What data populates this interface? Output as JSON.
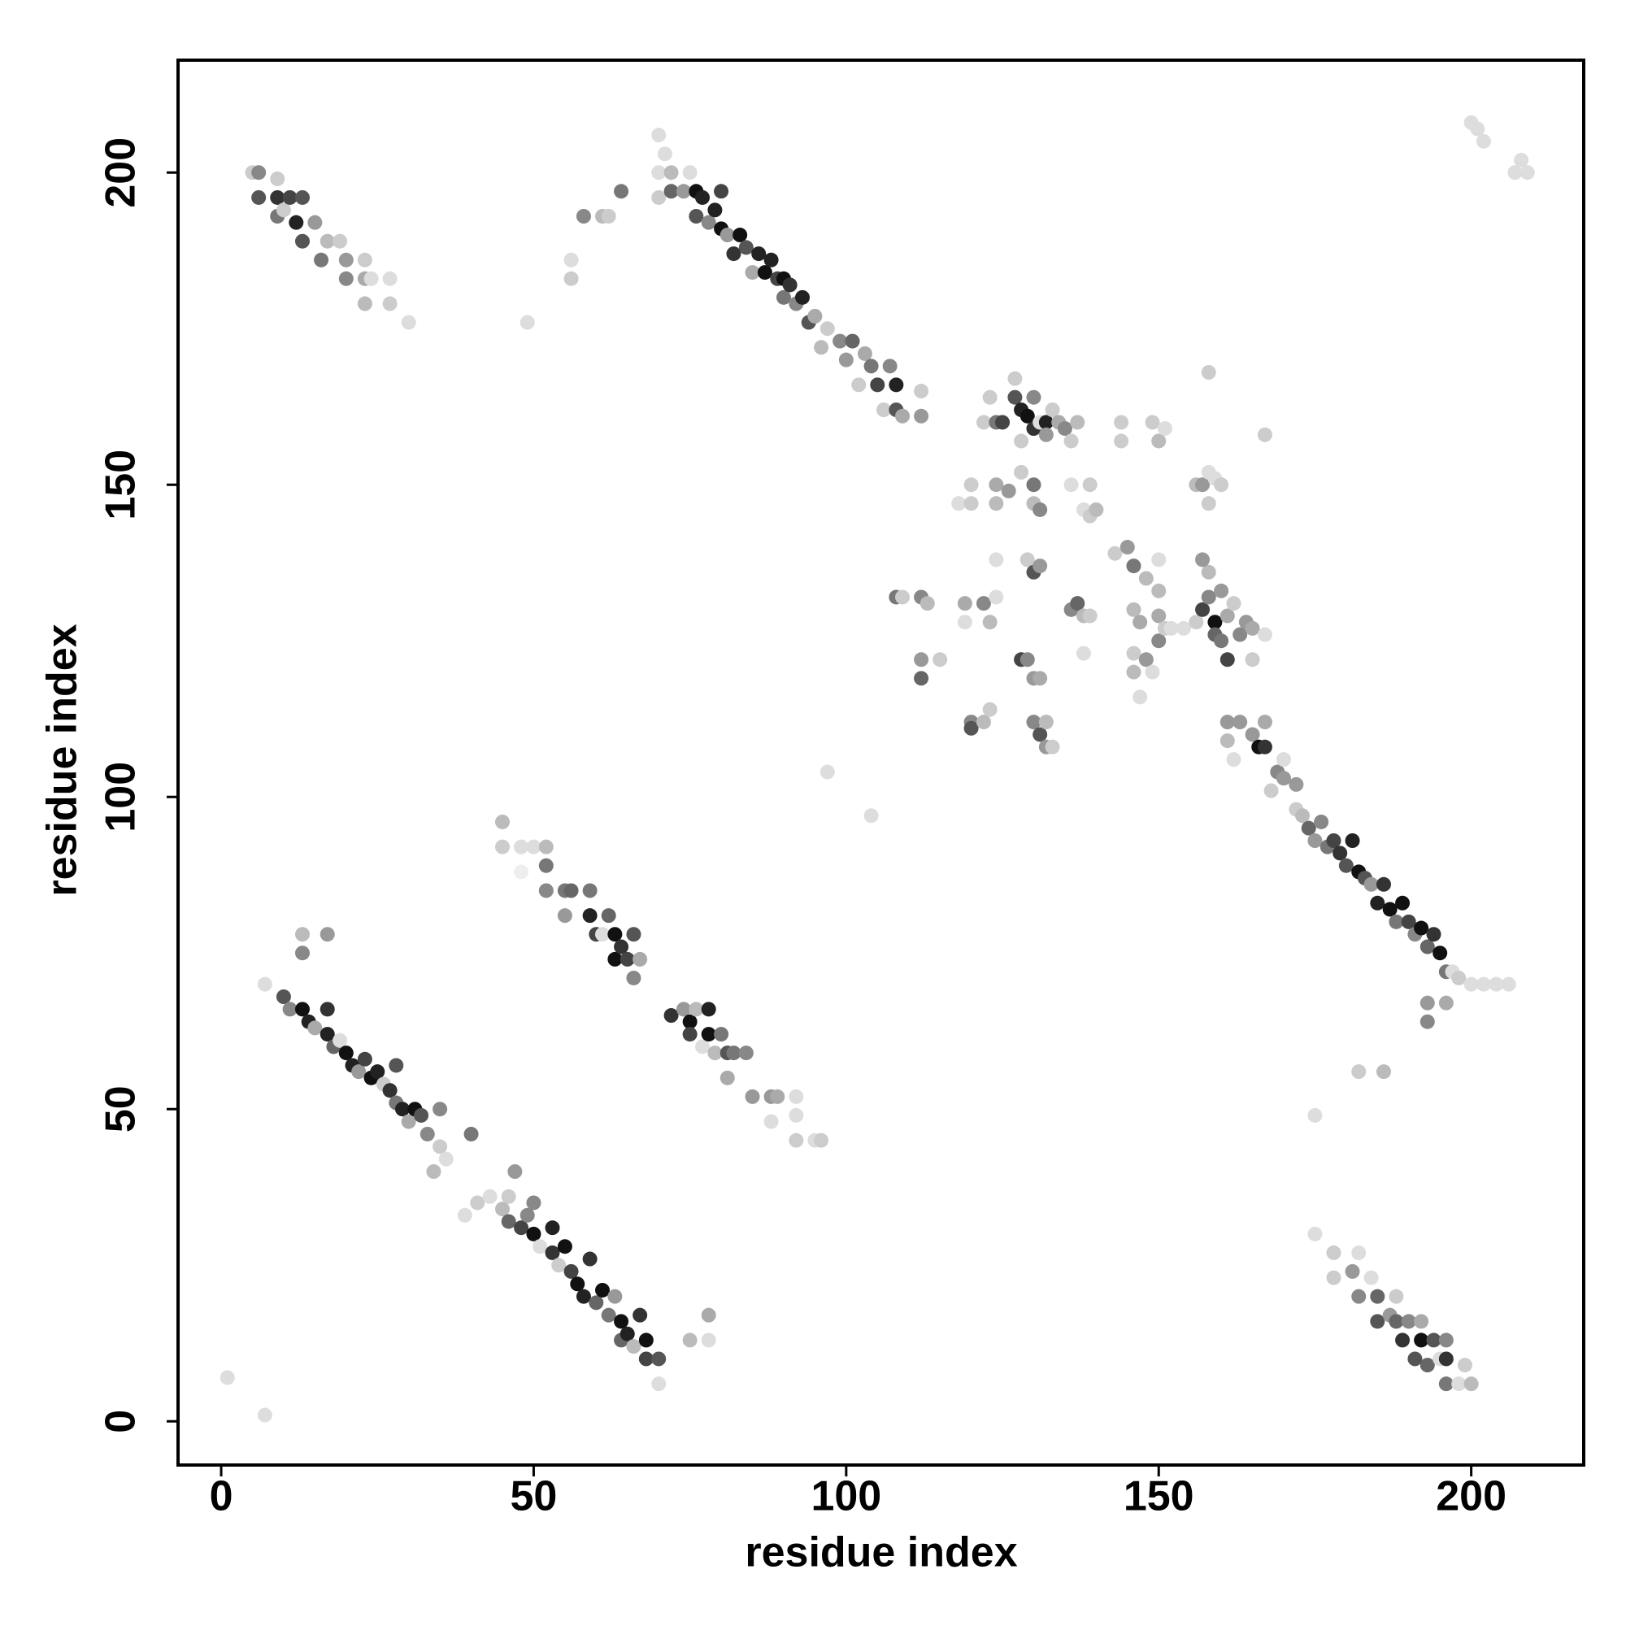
{
  "chart_data": {
    "type": "scatter",
    "xlabel": "residue index",
    "ylabel": "residue index",
    "xlim": [
      -6.9,
      218
    ],
    "ylim": [
      -7,
      218
    ],
    "xticks": [
      0,
      50,
      100,
      150,
      200
    ],
    "yticks": [
      0,
      50,
      100,
      150,
      200
    ],
    "x": [
      10,
      11,
      13,
      14,
      15,
      17,
      17,
      18,
      19,
      20,
      21,
      22,
      23,
      24,
      25,
      26,
      27,
      28,
      28,
      29,
      30,
      31,
      32,
      33,
      35,
      35,
      36,
      34,
      40,
      13,
      13,
      17,
      7,
      39,
      41,
      43,
      45,
      46,
      46,
      47,
      48,
      49,
      50,
      50,
      51,
      53,
      53,
      54,
      55,
      56,
      57,
      58,
      59,
      60,
      61,
      62,
      63,
      64,
      64,
      65,
      66,
      67,
      68,
      68,
      70,
      70,
      78,
      78,
      75,
      45,
      45,
      48,
      50,
      48,
      52,
      52,
      52,
      55,
      56,
      55,
      59,
      59,
      60,
      61,
      62,
      63,
      63,
      64,
      65,
      66,
      66,
      67,
      72,
      74,
      75,
      75,
      76,
      77,
      78,
      78,
      79,
      80,
      81,
      81,
      82,
      84,
      85,
      88,
      89,
      88,
      92,
      92,
      92,
      95,
      96,
      5,
      6,
      6,
      9,
      9,
      9,
      10,
      11,
      12,
      13,
      13,
      15,
      16,
      17,
      19,
      20,
      20,
      23,
      23,
      23,
      24,
      27,
      27,
      30,
      49,
      56,
      56,
      70,
      70,
      70,
      71,
      72,
      72,
      74,
      75,
      76,
      76,
      77,
      78,
      79,
      80,
      80,
      81,
      82,
      83,
      84,
      85,
      86,
      87,
      88,
      89,
      90,
      90,
      91,
      92,
      93,
      94,
      95,
      96,
      97,
      99,
      100,
      101,
      102,
      103,
      104,
      105,
      106,
      107,
      108,
      108,
      109,
      112,
      112,
      58,
      61,
      62,
      64,
      97,
      104,
      161,
      161,
      162,
      163,
      165,
      166,
      167,
      167,
      168,
      169,
      170,
      170,
      172,
      172,
      173,
      174,
      175,
      176,
      177,
      178,
      179,
      180,
      181,
      182,
      183,
      184,
      185,
      186,
      187,
      188,
      189,
      190,
      191,
      192,
      193,
      194,
      195,
      196,
      197,
      198,
      200,
      202,
      204,
      206,
      193,
      193,
      196,
      182,
      186,
      175,
      175,
      178,
      178,
      181,
      182,
      182,
      184,
      185,
      185,
      187,
      188,
      188,
      189,
      190,
      191,
      192,
      192,
      193,
      194,
      195,
      196,
      196,
      196,
      198,
      199,
      200,
      1,
      7,
      200,
      201,
      202,
      207,
      208,
      209,
      118,
      120,
      120,
      122,
      123,
      124,
      124,
      124,
      125,
      126,
      127,
      127,
      128,
      128,
      128,
      129,
      130,
      130,
      130,
      131,
      132,
      132,
      133,
      134,
      135,
      136,
      137,
      130,
      131,
      136,
      139,
      138,
      139,
      140,
      144,
      144,
      149,
      150,
      151,
      156,
      157,
      158,
      158,
      159,
      160,
      158,
      167,
      108,
      109,
      112,
      113,
      112,
      112,
      115,
      119,
      119,
      120,
      120,
      122,
      123,
      122,
      123,
      124,
      124,
      128,
      129,
      130,
      131,
      130,
      131,
      132,
      132,
      133,
      129,
      130,
      131,
      136,
      137,
      138,
      138,
      139,
      143,
      145,
      146,
      148,
      146,
      147,
      146,
      146,
      147,
      148,
      149,
      150,
      150,
      151,
      152,
      154,
      156,
      157,
      158,
      158,
      159,
      159,
      160,
      160,
      161,
      161,
      162,
      163,
      164,
      165,
      165,
      167,
      150,
      150,
      157
    ],
    "values": [
      68,
      66,
      66,
      64,
      63,
      66,
      62,
      60,
      61,
      59,
      57,
      56,
      58,
      55,
      56,
      54,
      53,
      57,
      51,
      50,
      48,
      50,
      49,
      46,
      50,
      44,
      42,
      40,
      46,
      75,
      78,
      78,
      70,
      33,
      35,
      36,
      34,
      36,
      32,
      40,
      31,
      33,
      30,
      35,
      28,
      31,
      27,
      25,
      28,
      24,
      22,
      20,
      26,
      19,
      21,
      17,
      20,
      16,
      13,
      14,
      12,
      17,
      13,
      10,
      10,
      6,
      17,
      13,
      13,
      96,
      92,
      92,
      92,
      88,
      92,
      89,
      85,
      85,
      85,
      81,
      85,
      81,
      78,
      78,
      81,
      78,
      74,
      76,
      74,
      78,
      71,
      74,
      65,
      66,
      64,
      62,
      66,
      60,
      66,
      62,
      59,
      62,
      59,
      55,
      59,
      59,
      52,
      52,
      52,
      48,
      52,
      49,
      45,
      45,
      45,
      200,
      200,
      196,
      199,
      193,
      196,
      194,
      196,
      192,
      196,
      189,
      192,
      186,
      189,
      189,
      186,
      183,
      186,
      183,
      179,
      183,
      183,
      179,
      176,
      176,
      186,
      183,
      206,
      200,
      196,
      203,
      197,
      200,
      197,
      200,
      193,
      197,
      196,
      192,
      194,
      191,
      197,
      190,
      187,
      190,
      188,
      184,
      187,
      184,
      186,
      183,
      180,
      183,
      182,
      179,
      180,
      176,
      177,
      172,
      175,
      173,
      170,
      173,
      166,
      171,
      169,
      166,
      162,
      169,
      166,
      162,
      161,
      165,
      161,
      193,
      193,
      193,
      197,
      104,
      97,
      112,
      109,
      106,
      112,
      110,
      108,
      108,
      112,
      101,
      104,
      103,
      106,
      102,
      98,
      97,
      95,
      93,
      96,
      92,
      93,
      91,
      89,
      93,
      88,
      87,
      86,
      83,
      86,
      82,
      80,
      83,
      80,
      78,
      79,
      76,
      78,
      75,
      72,
      72,
      71,
      70,
      70,
      70,
      70,
      67,
      64,
      67,
      56,
      56,
      49,
      30,
      27,
      23,
      24,
      27,
      20,
      23,
      20,
      16,
      17,
      20,
      16,
      13,
      16,
      10,
      16,
      13,
      9,
      13,
      10,
      13,
      10,
      6,
      6,
      9,
      6,
      7,
      1,
      208,
      207,
      205,
      200,
      202,
      200,
      147,
      150,
      147,
      160,
      164,
      160,
      150,
      147,
      160,
      149,
      167,
      164,
      162,
      157,
      152,
      161,
      159,
      164,
      150,
      160,
      160,
      158,
      162,
      160,
      159,
      157,
      160,
      147,
      146,
      150,
      150,
      146,
      145,
      146,
      160,
      157,
      160,
      157,
      159,
      150,
      150,
      152,
      147,
      151,
      150,
      168,
      158,
      132,
      132,
      132,
      131,
      122,
      119,
      122,
      128,
      131,
      112,
      111,
      112,
      114,
      131,
      128,
      132,
      138,
      122,
      122,
      119,
      119,
      112,
      110,
      112,
      108,
      108,
      138,
      136,
      137,
      130,
      131,
      129,
      123,
      129,
      139,
      140,
      137,
      135,
      130,
      128,
      123,
      120,
      116,
      122,
      120,
      125,
      129,
      127,
      127,
      127,
      128,
      130,
      132,
      136,
      128,
      126,
      133,
      125,
      122,
      129,
      131,
      126,
      128,
      127,
      122,
      126,
      133,
      138,
      138
    ],
    "colors": [
      "#555",
      "#888",
      "#111",
      "#222",
      "#aaa",
      "#333",
      "#222",
      "#666",
      "#ddd",
      "#111",
      "#222",
      "#999",
      "#444",
      "#111",
      "#222",
      "#ccc",
      "#333",
      "#555",
      "#777",
      "#222",
      "#aaa",
      "#111",
      "#555",
      "#888",
      "#888",
      "#ccc",
      "#ddd",
      "#bbb",
      "#777",
      "#888",
      "#bbb",
      "#999",
      "#ddd",
      "#ddd",
      "#ccc",
      "#ddd",
      "#bbb",
      "#ccc",
      "#666",
      "#999",
      "#444",
      "#888",
      "#111",
      "#888",
      "#ddd",
      "#222",
      "#333",
      "#ccc",
      "#111",
      "#444",
      "#111",
      "#222",
      "#333",
      "#666",
      "#111",
      "#777",
      "#999",
      "#111",
      "#666",
      "#222",
      "#bbb",
      "#333",
      "#111",
      "#444",
      "#555",
      "#ddd",
      "#aaa",
      "#ddd",
      "#bbb",
      "#bbb",
      "#ccc",
      "#ddd",
      "#ddd",
      "#eee",
      "#bbb",
      "#777",
      "#888",
      "#777",
      "#666",
      "#999",
      "#777",
      "#222",
      "#444",
      "#ddd",
      "#666",
      "#111",
      "#111",
      "#333",
      "#444",
      "#555",
      "#888",
      "#aaa",
      "#333",
      "#999",
      "#111",
      "#444",
      "#bbb",
      "#ddd",
      "#222",
      "#111",
      "#bbb",
      "#777",
      "#555",
      "#aaa",
      "#777",
      "#888",
      "#999",
      "#999",
      "#aaa",
      "#ddd",
      "#ddd",
      "#ddd",
      "#ccc",
      "#ddd",
      "#ccc",
      "#ccc",
      "#888",
      "#555",
      "#ccc",
      "#777",
      "#333",
      "#ccc",
      "#444",
      "#222",
      "#555",
      "#555",
      "#999",
      "#777",
      "#bbb",
      "#ccc",
      "#999",
      "#888",
      "#ccc",
      "#aaa",
      "#bbb",
      "#ddd",
      "#ddd",
      "#ccc",
      "#ddd",
      "#ddd",
      "#ddd",
      "#ccc",
      "#ddd",
      "#ddd",
      "#ccc",
      "#ddd",
      "#666",
      "#bbb",
      "#999",
      "#ddd",
      "#555",
      "#111",
      "#222",
      "#888",
      "#222",
      "#111",
      "#444",
      "#999",
      "#333",
      "#111",
      "#555",
      "#aaa",
      "#222",
      "#111",
      "#222",
      "#444",
      "#777",
      "#111",
      "#333",
      "#888",
      "#222",
      "#555",
      "#aaa",
      "#bbb",
      "#ccc",
      "#888",
      "#999",
      "#666",
      "#ccc",
      "#aaa",
      "#777",
      "#444",
      "#ccc",
      "#888",
      "#222",
      "#555",
      "#aaa",
      "#ccc",
      "#999",
      "#888",
      "#bbb",
      "#ccc",
      "#777",
      "#ddd",
      "#ddd",
      "#999",
      "#bbb",
      "#ddd",
      "#999",
      "#999",
      "#111",
      "#333",
      "#aaa",
      "#ccc",
      "#888",
      "#999",
      "#ddd",
      "#999",
      "#ccc",
      "#bbb",
      "#666",
      "#999",
      "#888",
      "#777",
      "#444",
      "#333",
      "#555",
      "#222",
      "#111",
      "#555",
      "#999",
      "#222",
      "#333",
      "#111",
      "#777",
      "#111",
      "#444",
      "#888",
      "#111",
      "#666",
      "#333",
      "#111",
      "#777",
      "#ddd",
      "#ccc",
      "#ddd",
      "#ddd",
      "#ddd",
      "#ddd",
      "#999",
      "#888",
      "#aaa",
      "#ccc",
      "#bbb",
      "#ddd",
      "#ddd",
      "#ccc",
      "#ccc",
      "#999",
      "#ddd",
      "#888",
      "#ddd",
      "#666",
      "#555",
      "#999",
      "#ccc",
      "#666",
      "#333",
      "#888",
      "#555",
      "#aaa",
      "#111",
      "#666",
      "#555",
      "#ddd",
      "#888",
      "#333",
      "#777",
      "#ddd",
      "#ccc",
      "#bbb",
      "#ddd",
      "#ddd",
      "#ddd",
      "#ddd",
      "#ddd",
      "#ddd",
      "#ddd",
      "#ddd",
      "#ddd",
      "#ccc",
      "#ccc",
      "#ccc",
      "#ccc",
      "#777",
      "#aaa",
      "#bbb",
      "#444",
      "#999",
      "#ccc",
      "#555",
      "#222",
      "#ccc",
      "#ccc",
      "#111",
      "#333",
      "#888",
      "#777",
      "#ddd",
      "#222",
      "#999",
      "#ccc",
      "#aaa",
      "#888",
      "#ccc",
      "#bbb",
      "#bbb",
      "#888",
      "#ddd",
      "#ccc",
      "#ddd",
      "#ccc",
      "#bbb",
      "#ccc",
      "#ccc",
      "#ccc",
      "#bbb",
      "#ddd",
      "#bbb",
      "#999",
      "#ddd",
      "#ccc",
      "#ddd",
      "#ccc",
      "#ccc",
      "#ccc",
      "#777",
      "#ccc",
      "#888",
      "#bbb",
      "#999",
      "#666",
      "#ccc",
      "#ddd",
      "#aaa",
      "#888",
      "#555",
      "#bbb",
      "#ccc",
      "#888",
      "#bbb",
      "#ddd",
      "#ddd",
      "#444",
      "#888",
      "#999",
      "#aaa",
      "#888",
      "#555",
      "#bbb",
      "#999",
      "#ccc",
      "#ccc",
      "#555",
      "#999",
      "#888",
      "#666",
      "#bbb",
      "#ddd",
      "#ccc",
      "#ccc",
      "#999",
      "#777",
      "#bbb",
      "#bbb",
      "#aaa",
      "#ccc",
      "#bbb",
      "#ddd",
      "#999",
      "#ddd",
      "#888",
      "#aaa",
      "#ccc",
      "#ddd",
      "#ddd",
      "#ccc",
      "#444",
      "#888",
      "#bbb",
      "#111",
      "#666",
      "#999",
      "#777",
      "#444",
      "#aaa",
      "#ccc",
      "#888",
      "#999",
      "#aaa",
      "#ccc",
      "#ddd",
      "#bbb",
      "#ddd",
      "#999"
    ]
  }
}
